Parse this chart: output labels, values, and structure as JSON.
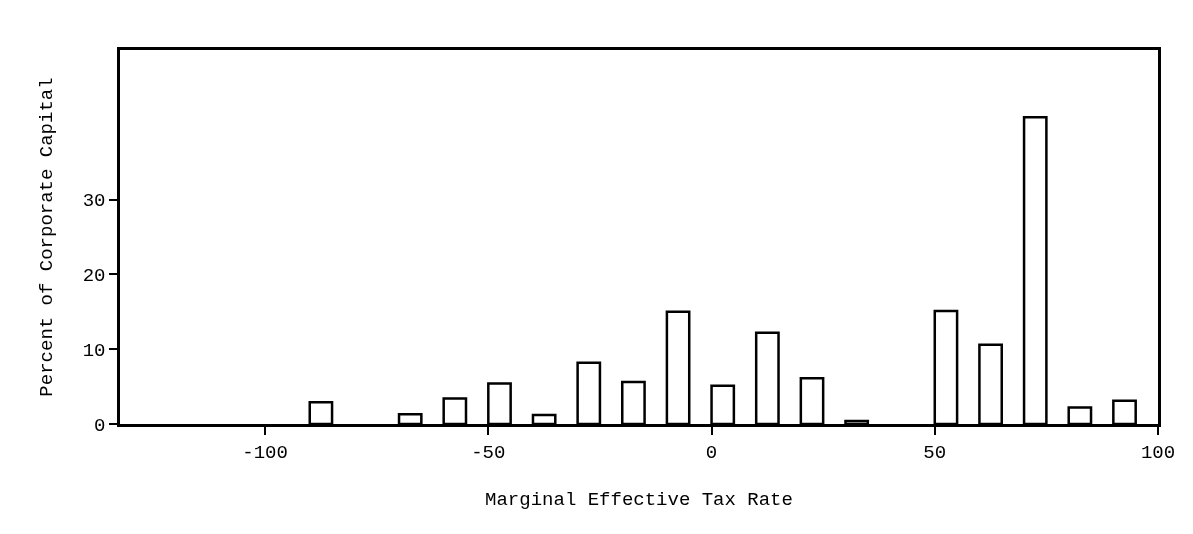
{
  "chart_data": {
    "type": "bar",
    "xlabel": "Marginal Effective Tax Rate",
    "ylabel": "Percent of Corporate Capital",
    "x": [
      -87.5,
      -67.5,
      -57.5,
      -47.5,
      -37.5,
      -27.5,
      -17.5,
      -7.5,
      2.5,
      12.5,
      22.5,
      32.5,
      52.5,
      62.5,
      72.5,
      82.5,
      92.5
    ],
    "values": [
      2.9,
      1.3,
      3.4,
      5.4,
      1.2,
      8.2,
      5.6,
      15.0,
      5.1,
      12.2,
      6.1,
      0.4,
      15.1,
      10.6,
      41.0,
      2.2,
      3.1
    ],
    "color": "#ffffff",
    "xlim": [
      -132.5,
      100
    ],
    "xticks": [
      -100,
      -50,
      0,
      50,
      100
    ],
    "ylim": [
      0,
      50
    ],
    "yticks": [
      0,
      10,
      20,
      30
    ]
  }
}
